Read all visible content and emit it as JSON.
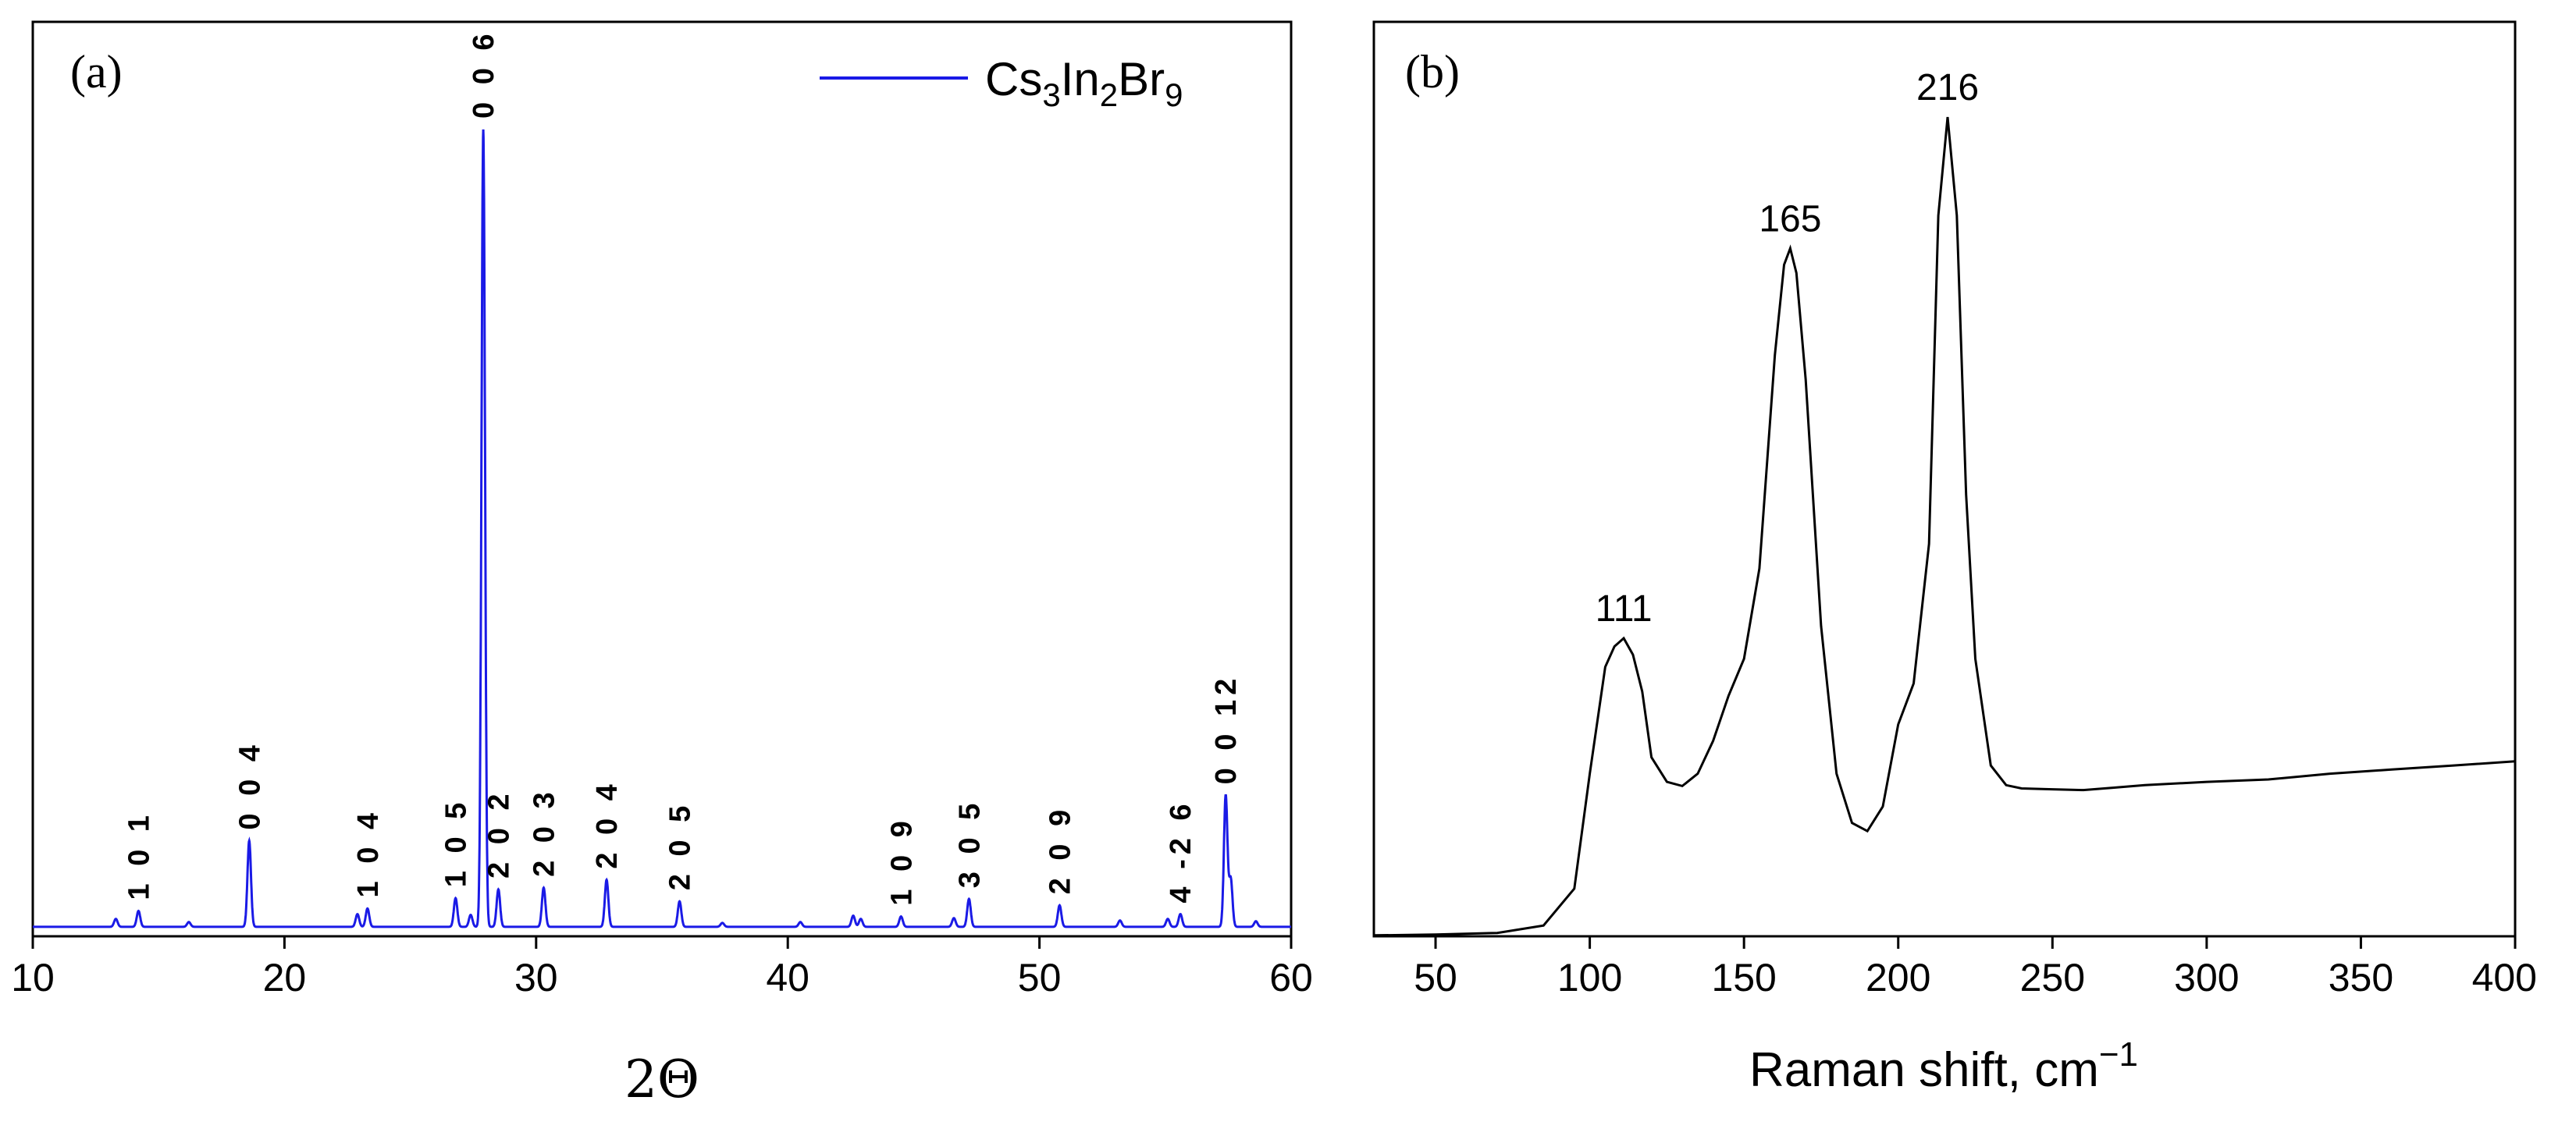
{
  "chart_data": [
    {
      "panel": "(a)",
      "type": "line",
      "title": "",
      "xlabel": "2Θ",
      "ylabel": "",
      "xlim": [
        10,
        60
      ],
      "ylim": [
        0,
        100
      ],
      "xticks": [
        10,
        20,
        30,
        40,
        50,
        60
      ],
      "legend": {
        "label_base": "Cs",
        "parts": [
          "Cs",
          "3",
          "In",
          "2",
          "Br",
          "9"
        ],
        "placement": "top-right",
        "color": "#1a1ae6"
      },
      "baseline": 0.4,
      "series": [
        {
          "name": "Cs3In2Br9",
          "peaks": [
            {
              "x": 13.3,
              "y": 1.0
            },
            {
              "x": 14.2,
              "y": 2.0
            },
            {
              "x": 16.2,
              "y": 0.6
            },
            {
              "x": 18.6,
              "y": 10.8
            },
            {
              "x": 22.9,
              "y": 1.6
            },
            {
              "x": 23.3,
              "y": 2.3
            },
            {
              "x": 26.8,
              "y": 3.6
            },
            {
              "x": 27.4,
              "y": 1.5
            },
            {
              "x": 27.9,
              "y": 100
            },
            {
              "x": 28.5,
              "y": 4.7
            },
            {
              "x": 30.3,
              "y": 4.9
            },
            {
              "x": 32.8,
              "y": 5.9
            },
            {
              "x": 35.7,
              "y": 3.2
            },
            {
              "x": 37.4,
              "y": 0.5
            },
            {
              "x": 40.5,
              "y": 0.6
            },
            {
              "x": 42.6,
              "y": 1.4
            },
            {
              "x": 42.9,
              "y": 1.0
            },
            {
              "x": 44.5,
              "y": 1.3
            },
            {
              "x": 46.6,
              "y": 1.1
            },
            {
              "x": 47.2,
              "y": 3.5
            },
            {
              "x": 50.8,
              "y": 2.7
            },
            {
              "x": 53.2,
              "y": 0.8
            },
            {
              "x": 55.1,
              "y": 1.0
            },
            {
              "x": 55.6,
              "y": 1.6
            },
            {
              "x": 57.4,
              "y": 16.5
            },
            {
              "x": 57.6,
              "y": 6.0
            },
            {
              "x": 58.6,
              "y": 0.7
            }
          ]
        }
      ],
      "annotations": [
        {
          "text": "1 0 1",
          "x": 14.2,
          "y": 2.0
        },
        {
          "text": "0 0 4",
          "x": 18.6,
          "y": 10.8
        },
        {
          "text": "1 0 4",
          "x": 23.3,
          "y": 2.3
        },
        {
          "text": "1 0 5",
          "x": 26.8,
          "y": 3.6
        },
        {
          "text": "0 0 6",
          "x": 27.9,
          "y": 100
        },
        {
          "text": "2 0 2",
          "x": 28.5,
          "y": 4.7
        },
        {
          "text": "2 0 3",
          "x": 30.3,
          "y": 4.9
        },
        {
          "text": "2 0 4",
          "x": 32.8,
          "y": 5.9
        },
        {
          "text": "2 0 5",
          "x": 35.7,
          "y": 3.2
        },
        {
          "text": "1 0 9",
          "x": 44.5,
          "y": 1.3
        },
        {
          "text": "3 0 5",
          "x": 47.2,
          "y": 3.5
        },
        {
          "text": "2 0 9",
          "x": 50.8,
          "y": 2.7
        },
        {
          "text": "4 -2 6",
          "x": 55.6,
          "y": 1.6
        },
        {
          "text": "0 0 12",
          "x": 57.4,
          "y": 16.5
        }
      ]
    },
    {
      "panel": "(b)",
      "type": "line",
      "title": "",
      "xlabel_base": "Raman shift, cm",
      "xlabel_sup": "−1",
      "ylabel": "",
      "xlim": [
        30,
        400
      ],
      "ylim": [
        0,
        100
      ],
      "xticks": [
        50,
        100,
        150,
        200,
        250,
        300,
        350,
        400
      ],
      "series": [
        {
          "name": "Raman",
          "x": [
            30,
            50,
            70,
            85,
            95,
            100,
            105,
            108,
            111,
            114,
            117,
            120,
            125,
            130,
            135,
            140,
            145,
            150,
            155,
            160,
            163,
            165,
            167,
            170,
            175,
            180,
            185,
            190,
            195,
            200,
            205,
            210,
            213,
            216,
            219,
            222,
            225,
            230,
            235,
            240,
            250,
            260,
            270,
            280,
            300,
            320,
            340,
            360,
            380,
            400
          ],
          "y": [
            0.3,
            0.4,
            0.6,
            1.5,
            6,
            20,
            33,
            35.5,
            36.5,
            34.5,
            30,
            22,
            19,
            18.5,
            20,
            24,
            29.5,
            34,
            45,
            71,
            82,
            84,
            81,
            68,
            38,
            20,
            14,
            13,
            16,
            26,
            31,
            48,
            88,
            100,
            88,
            54,
            34,
            21,
            18.6,
            18.2,
            18.1,
            18,
            18.3,
            18.6,
            19,
            19.3,
            20,
            20.5,
            21,
            21.5
          ]
        }
      ],
      "annotations": [
        {
          "text": "111",
          "x": 111,
          "y": 36.5
        },
        {
          "text": "165",
          "x": 165,
          "y": 84
        },
        {
          "text": "216",
          "x": 216,
          "y": 100
        }
      ]
    }
  ]
}
